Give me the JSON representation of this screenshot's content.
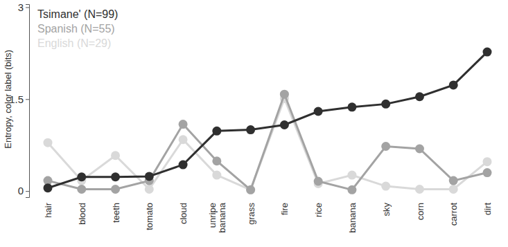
{
  "chart_data": {
    "type": "line",
    "y_label": "Entropy, color label (bits)",
    "categories": [
      "hair",
      "blood",
      "teeth",
      "tomato",
      "cloud",
      "unripe banana",
      "grass",
      "fire",
      "rice",
      "banana",
      "sky",
      "corn",
      "carrot",
      "dirt"
    ],
    "series": [
      {
        "name": "Tsimane' (N=99)",
        "color": "#2f2f2f",
        "values": [
          0.05,
          0.23,
          0.23,
          0.24,
          0.43,
          0.98,
          1.0,
          1.08,
          1.3,
          1.37,
          1.42,
          1.54,
          1.73,
          2.27
        ]
      },
      {
        "name": "Spanish (N=55)",
        "color": "#a3a3a3",
        "values": [
          0.17,
          0.03,
          0.03,
          0.17,
          1.09,
          0.49,
          0.02,
          1.58,
          0.16,
          0.02,
          0.73,
          0.69,
          0.17,
          0.3
        ]
      },
      {
        "name": "English (N=29)",
        "color": "#d9d9d9",
        "values": [
          0.79,
          0.17,
          0.58,
          0.03,
          0.84,
          0.26,
          0.02,
          1.51,
          0.12,
          0.26,
          0.08,
          0.03,
          0.03,
          0.48
        ]
      }
    ],
    "ylim": [
      -0.1,
      3.05
    ],
    "yticks": [
      0,
      1.5,
      3
    ],
    "legend": "upper left",
    "marker": "circle",
    "line_style": "solid"
  }
}
